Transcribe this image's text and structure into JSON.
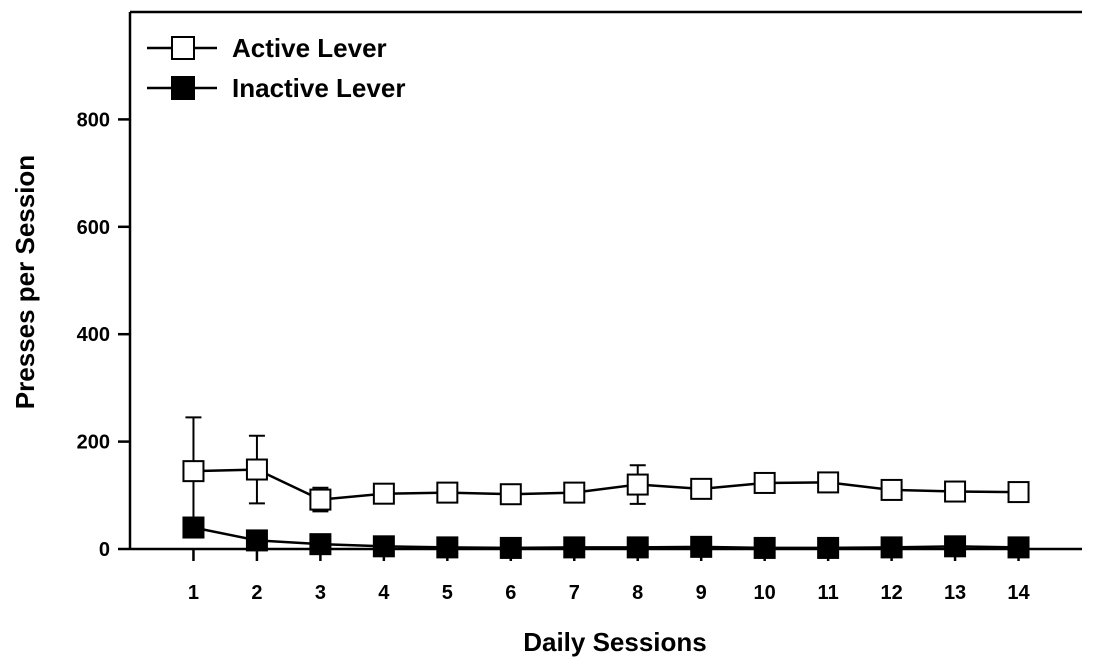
{
  "chart_data": {
    "type": "line",
    "title": "",
    "xlabel": "Daily Sessions",
    "ylabel": "Presses per Session",
    "x": [
      1,
      2,
      3,
      4,
      5,
      6,
      7,
      8,
      9,
      10,
      11,
      12,
      13,
      14
    ],
    "x_tick_labels": [
      "1",
      "2",
      "3",
      "4",
      "5",
      "6",
      "7",
      "8",
      "9",
      "10",
      "11",
      "12",
      "13",
      "14"
    ],
    "y_ticks": [
      0,
      200,
      400,
      600,
      800
    ],
    "y_tick_labels": [
      "0",
      "200",
      "400",
      "600",
      "800"
    ],
    "xlim": [
      0,
      15
    ],
    "ylim": [
      0,
      1000
    ],
    "legend_position": "top-left",
    "grid": false,
    "series": [
      {
        "name": "Active Lever",
        "marker": "open-square",
        "color": "#000000",
        "fill": "#ffffff",
        "values": [
          145,
          148,
          92,
          103,
          105,
          102,
          105,
          120,
          112,
          123,
          124,
          110,
          107,
          106
        ],
        "error": [
          100,
          63,
          22,
          0,
          0,
          0,
          0,
          36,
          0,
          0,
          0,
          0,
          0,
          0
        ]
      },
      {
        "name": "Inactive Lever",
        "marker": "filled-square",
        "color": "#000000",
        "fill": "#000000",
        "values": [
          40,
          16,
          9,
          5,
          3,
          2,
          3,
          3,
          4,
          2,
          2,
          3,
          5,
          3
        ],
        "error": [
          0,
          0,
          0,
          0,
          0,
          0,
          0,
          0,
          0,
          0,
          0,
          0,
          0,
          0
        ]
      }
    ]
  }
}
